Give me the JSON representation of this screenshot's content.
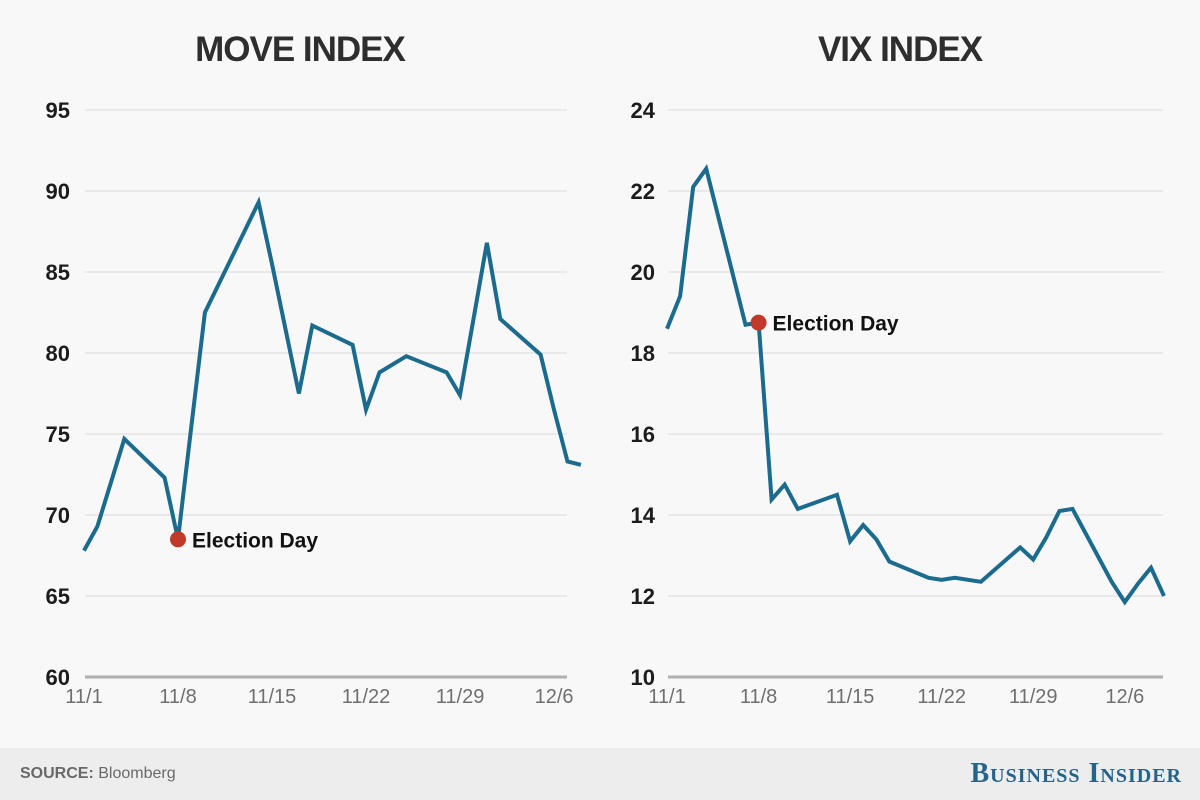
{
  "colors": {
    "line": "#1b6b8e",
    "annotation_dot": "#c0392b",
    "grid": "#e4e4e4",
    "axis_line": "#b0b0b0",
    "y_label": "#1c1c1c",
    "x_label": "#6f6f6f",
    "title": "#2e2e2e",
    "source_text": "#696969",
    "brand": "#24638b",
    "background": "#f8f8f8",
    "footer_background": "#ededed"
  },
  "chart_data": [
    {
      "type": "line",
      "title": "MOVE INDEX",
      "ylim": [
        60,
        95
      ],
      "yticks": [
        60,
        65,
        70,
        75,
        80,
        85,
        90,
        95
      ],
      "xticks": [
        "11/1",
        "11/8",
        "11/15",
        "11/22",
        "11/29",
        "12/6"
      ],
      "grid": true,
      "legend": "none",
      "dates": [
        "11/1",
        "11/2",
        "11/3",
        "11/4",
        "11/7",
        "11/8",
        "11/9",
        "11/10",
        "11/11",
        "11/14",
        "11/15",
        "11/16",
        "11/17",
        "11/18",
        "11/21",
        "11/22",
        "11/23",
        "11/25",
        "11/28",
        "11/29",
        "11/30",
        "12/1",
        "12/2",
        "12/5",
        "12/6",
        "12/7",
        "12/8"
      ],
      "values": [
        67.8,
        69.3,
        72.0,
        74.7,
        72.3,
        68.5,
        75.5,
        82.5,
        84.2,
        89.3,
        85.5,
        81.5,
        77.5,
        81.7,
        80.5,
        76.5,
        78.8,
        79.8,
        78.8,
        77.4,
        82.1,
        86.8,
        82.1,
        79.9,
        76.5,
        73.3,
        73.1
      ],
      "annotation": {
        "date": "11/8",
        "value": 68.5,
        "label": "Election Day"
      }
    },
    {
      "type": "line",
      "title": "VIX INDEX",
      "ylim": [
        10,
        24
      ],
      "yticks": [
        10,
        12,
        14,
        16,
        18,
        20,
        22,
        24
      ],
      "xticks": [
        "11/1",
        "11/8",
        "11/15",
        "11/22",
        "11/29",
        "12/6"
      ],
      "grid": true,
      "legend": "none",
      "dates": [
        "11/1",
        "11/2",
        "11/3",
        "11/4",
        "11/7",
        "11/8",
        "11/9",
        "11/10",
        "11/11",
        "11/14",
        "11/15",
        "11/16",
        "11/17",
        "11/18",
        "11/21",
        "11/22",
        "11/23",
        "11/25",
        "11/28",
        "11/29",
        "11/30",
        "12/1",
        "12/2",
        "12/5",
        "12/6",
        "12/7",
        "12/8",
        "12/9"
      ],
      "values": [
        18.6,
        19.4,
        22.1,
        22.55,
        18.7,
        18.75,
        14.38,
        14.75,
        14.15,
        14.5,
        13.35,
        13.75,
        13.4,
        12.85,
        12.45,
        12.4,
        12.45,
        12.35,
        13.2,
        12.9,
        13.45,
        14.1,
        14.15,
        12.35,
        11.85,
        12.3,
        12.7,
        12.0
      ],
      "annotation": {
        "date": "11/8",
        "value": 18.75,
        "label": "Election Day"
      }
    }
  ],
  "footer": {
    "source_label": "SOURCE:",
    "source_value": "Bloomberg",
    "brand": "Business Insider"
  }
}
